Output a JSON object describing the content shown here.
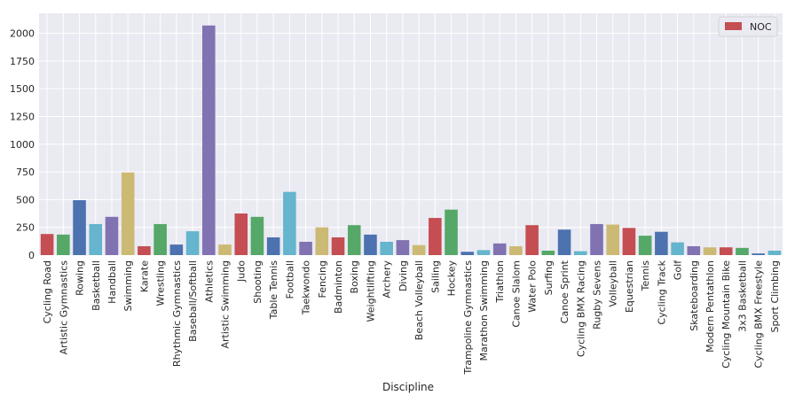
{
  "chart_data": {
    "type": "bar",
    "xlabel": "Discipline",
    "ylabel": "",
    "ylim": [
      0,
      2180
    ],
    "yticks": [
      0,
      250,
      500,
      750,
      1000,
      1250,
      1500,
      1750,
      2000
    ],
    "grid": true,
    "legend_position": "top-right",
    "series": [
      {
        "name": "NOC",
        "values": [
          190,
          185,
          495,
          280,
          345,
          745,
          80,
          280,
          95,
          215,
          2070,
          95,
          375,
          345,
          160,
          570,
          120,
          250,
          160,
          270,
          185,
          120,
          135,
          90,
          335,
          410,
          30,
          45,
          105,
          80,
          270,
          40,
          230,
          35,
          280,
          275,
          245,
          175,
          210,
          115,
          80,
          70,
          70,
          65,
          15,
          40
        ]
      }
    ],
    "categories": [
      "Cycling Road",
      "Artistic Gymnastics",
      "Rowing",
      "Basketball",
      "Handball",
      "Swimming",
      "Karate",
      "Wrestling",
      "Rhythmic Gymnastics",
      "Baseball/Softball",
      "Athletics",
      "Artistic Swimming",
      "Judo",
      "Shooting",
      "Table Tennis",
      "Football",
      "Taekwondo",
      "Fencing",
      "Badminton",
      "Boxing",
      "Weightlifting",
      "Archery",
      "Diving",
      "Beach Volleyball",
      "Sailing",
      "Hockey",
      "Trampoline Gymnastics",
      "Marathon Swimming",
      "Triathlon",
      "Canoe Slalom",
      "Water Polo",
      "Surfing",
      "Canoe Sprint",
      "Cycling BMX Racing",
      "Rugby Sevens",
      "Volleyball",
      "Equestrian",
      "Tennis",
      "Cycling Track",
      "Golf",
      "Skateboarding",
      "Modern Pentathlon",
      "Cycling Mountain Bike",
      "3x3 Basketball",
      "Cycling BMX Freestyle",
      "Sport Climbing"
    ],
    "colors": [
      "#c44e52",
      "#55a868",
      "#4c72b0",
      "#64b5cd",
      "#8172b2",
      "#ccb974"
    ],
    "legend_color": "#c44e52",
    "background": "#eaeaf2",
    "grid_color": "#ffffff"
  }
}
